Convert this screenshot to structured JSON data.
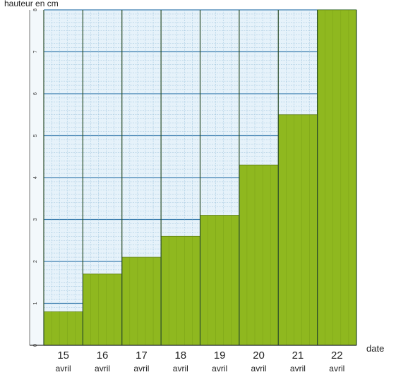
{
  "chart_data": {
    "type": "bar",
    "title": "",
    "ylabel": "hauteur en cm",
    "xlabel": "date",
    "categories": [
      {
        "day": "15",
        "month": "avril"
      },
      {
        "day": "16",
        "month": "avril"
      },
      {
        "day": "17",
        "month": "avril"
      },
      {
        "day": "18",
        "month": "avril"
      },
      {
        "day": "19",
        "month": "avril"
      },
      {
        "day": "20",
        "month": "avril"
      },
      {
        "day": "21",
        "month": "avril"
      },
      {
        "day": "22",
        "month": "avril"
      }
    ],
    "values": [
      0.8,
      1.7,
      2.1,
      2.6,
      3.1,
      4.3,
      5.5,
      8.0
    ],
    "ylim": [
      0,
      8
    ],
    "y_ticks": [
      "0",
      "1",
      "2",
      "3",
      "4",
      "5",
      "6",
      "7",
      "8"
    ],
    "grid": true,
    "colors": {
      "bar": "#8fb81f",
      "background": "#e6f2fa",
      "grid_minor": "#9cc3dc",
      "grid_major": "#3e7fb0",
      "column_line": "#2a4d2a"
    }
  }
}
